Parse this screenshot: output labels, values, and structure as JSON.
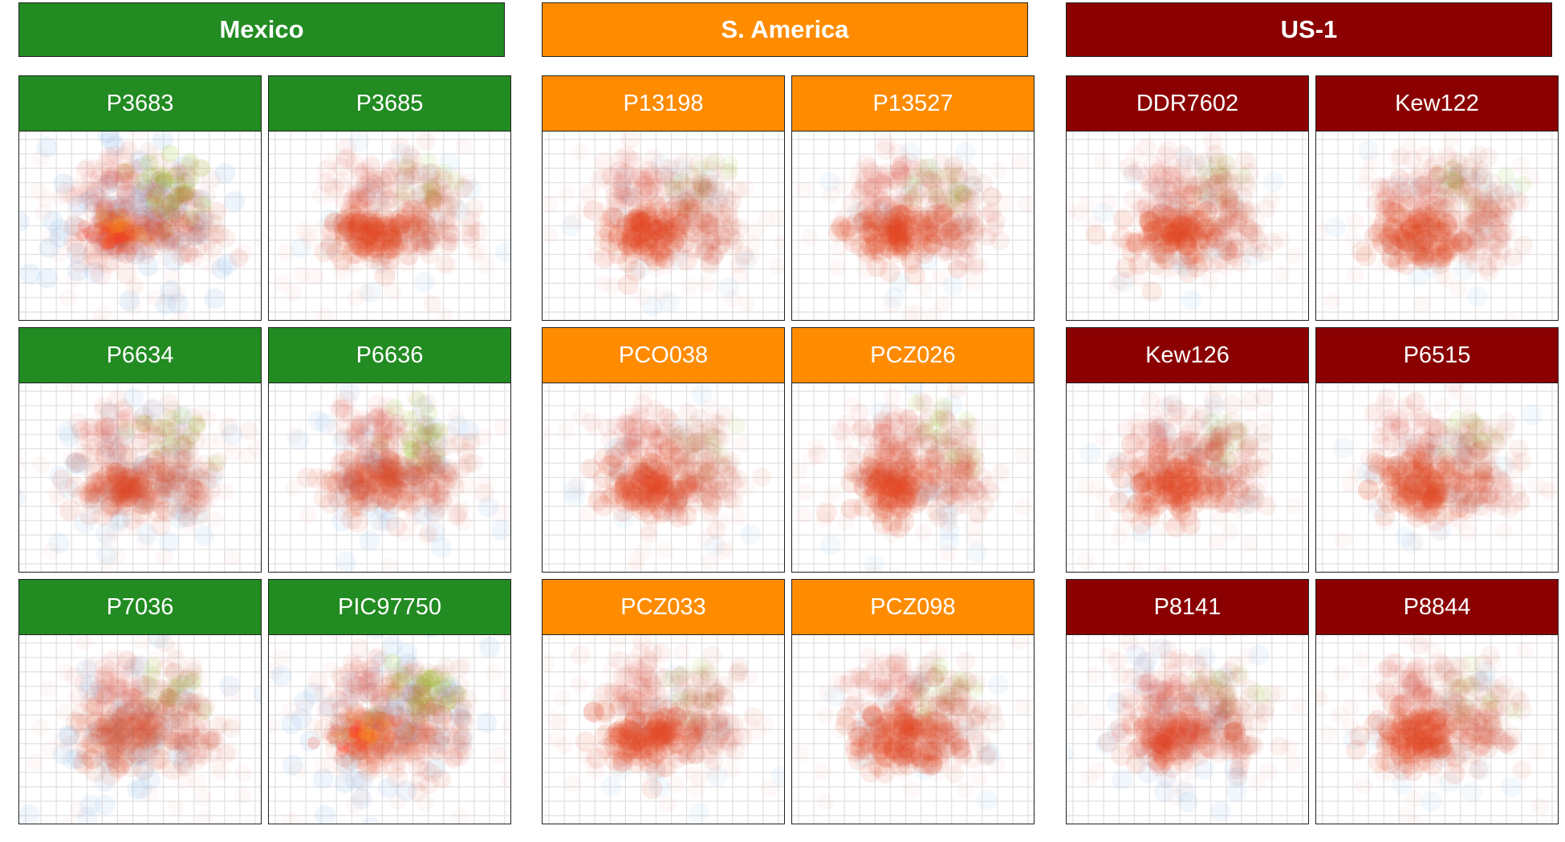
{
  "chart_data": {
    "type": "scatter",
    "description_note": "",
    "groups": [
      {
        "name": "Mexico",
        "color": "#228B22",
        "panels": [
          {
            "label": "P3683",
            "blue_level": 0.9,
            "green_level": 0.8
          },
          {
            "label": "P3685",
            "blue_level": 0.15,
            "green_level": 0.2
          },
          {
            "label": "P6634",
            "blue_level": 0.5,
            "green_level": 0.35
          },
          {
            "label": "P6636",
            "blue_level": 0.45,
            "green_level": 0.5
          },
          {
            "label": "P7036",
            "blue_level": 0.55,
            "green_level": 0.3
          },
          {
            "label": "PIC97750",
            "blue_level": 0.75,
            "green_level": 0.75
          }
        ]
      },
      {
        "name": "S. America",
        "color": "#FF8C00",
        "panels": [
          {
            "label": "P13198",
            "blue_level": 0.12,
            "green_level": 0.15
          },
          {
            "label": "P13527",
            "blue_level": 0.1,
            "green_level": 0.25
          },
          {
            "label": "PCO038",
            "blue_level": 0.1,
            "green_level": 0.1
          },
          {
            "label": "PCZ026",
            "blue_level": 0.12,
            "green_level": 0.25
          },
          {
            "label": "PCZ033",
            "blue_level": 0.12,
            "green_level": 0.12
          },
          {
            "label": "PCZ098",
            "blue_level": 0.1,
            "green_level": 0.2
          }
        ]
      },
      {
        "name": "US-1",
        "color": "#8B0000",
        "panels": [
          {
            "label": "DDR7602",
            "blue_level": 0.15,
            "green_level": 0.12
          },
          {
            "label": "Kew122",
            "blue_level": 0.15,
            "green_level": 0.2
          },
          {
            "label": "Kew126",
            "blue_level": 0.12,
            "green_level": 0.12
          },
          {
            "label": "P6515",
            "blue_level": 0.15,
            "green_level": 0.15
          },
          {
            "label": "P8141",
            "blue_level": 0.35,
            "green_level": 0.15
          },
          {
            "label": "P8844",
            "blue_level": 0.12,
            "green_level": 0.15
          }
        ]
      }
    ]
  }
}
